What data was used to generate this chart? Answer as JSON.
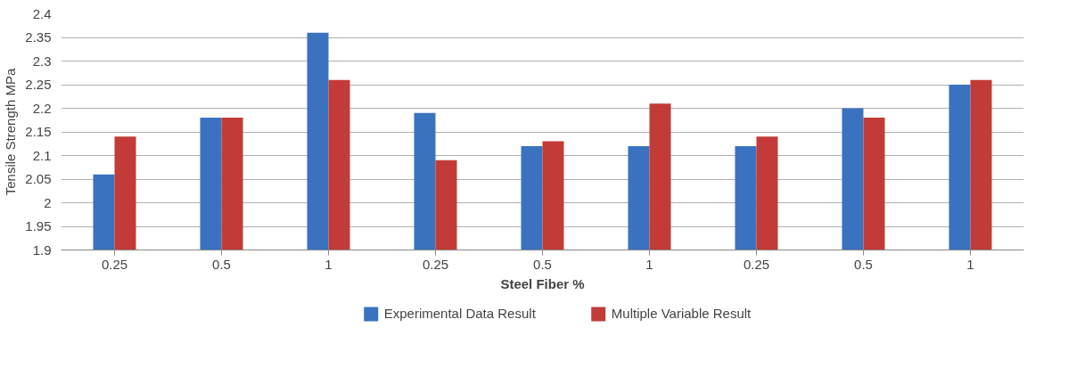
{
  "chart_data": {
    "type": "bar",
    "xlabel": "Steel Fiber %",
    "ylabel": "Tensile Strength MPa",
    "categories": [
      "0.25",
      "0.5",
      "1",
      "0.25",
      "0.5",
      "1",
      "0.25",
      "0.5",
      "1"
    ],
    "series": [
      {
        "name": "Experimental Data Result",
        "color": "#3a72c0",
        "values": [
          2.06,
          2.18,
          2.36,
          2.19,
          2.12,
          2.12,
          2.12,
          2.2,
          2.25
        ]
      },
      {
        "name": "Multiple Variable Result",
        "color": "#c23b38",
        "values": [
          2.14,
          2.18,
          2.26,
          2.09,
          2.13,
          2.21,
          2.14,
          2.18,
          2.26
        ]
      }
    ],
    "ylim": [
      1.9,
      2.4
    ],
    "yticks": [
      1.9,
      1.95,
      2,
      2.05,
      2.1,
      2.15,
      2.2,
      2.25,
      2.3,
      2.35,
      2.4
    ],
    "grid": "y",
    "legend": "bottom"
  }
}
